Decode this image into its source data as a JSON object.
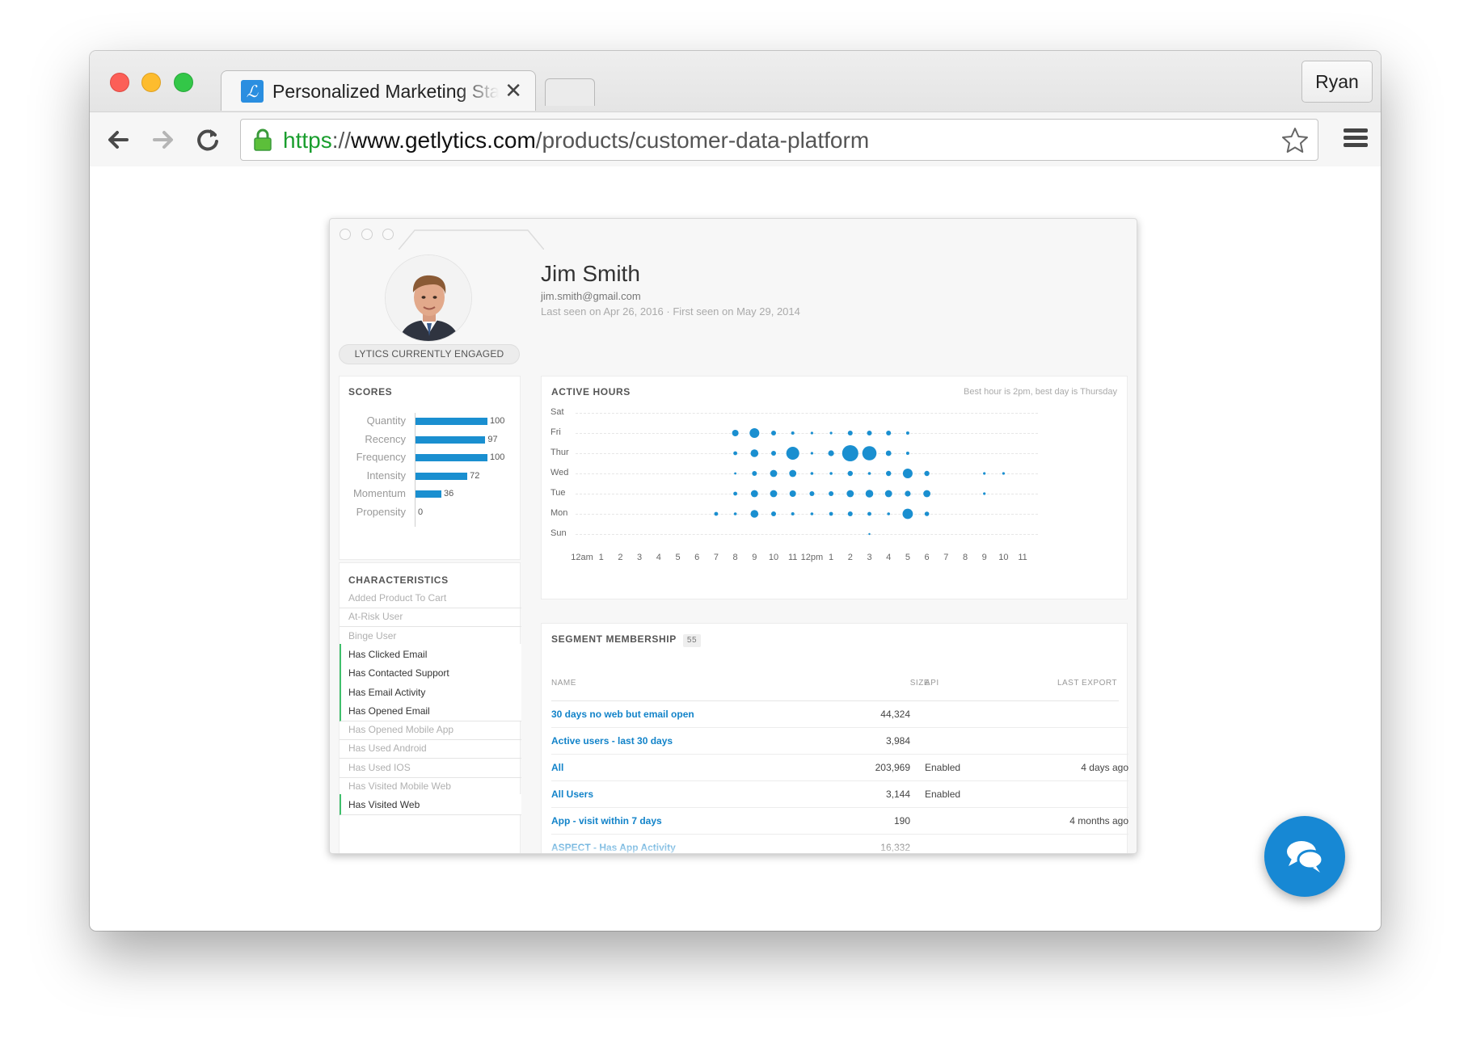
{
  "browser": {
    "tab_title": "Personalized Marketing Sta",
    "tab_favicon_letter": "ℒ",
    "tab_close": "✕",
    "profile_name": "Ryan",
    "url": {
      "protocol": "https",
      "separator": "://",
      "host": "www.getlytics.com",
      "path": "/products/customer-data-platform"
    }
  },
  "profile": {
    "name": "Jim Smith",
    "email": "jim.smith@gmail.com",
    "seen": "Last seen on Apr 26, 2016 · First seen on May 29, 2014",
    "badge": "LYTICS CURRENTLY ENGAGED"
  },
  "scores": {
    "title": "SCORES",
    "items": [
      {
        "label": "Quantity",
        "value": 100
      },
      {
        "label": "Recency",
        "value": 97
      },
      {
        "label": "Frequency",
        "value": 100
      },
      {
        "label": "Intensity",
        "value": 72
      },
      {
        "label": "Momentum",
        "value": 36
      },
      {
        "label": "Propensity",
        "value": 0
      }
    ]
  },
  "characteristics": {
    "title": "CHARACTERISTICS",
    "items": [
      {
        "label": "Added Product To Cart",
        "active": false
      },
      {
        "label": "At-Risk User",
        "active": false
      },
      {
        "label": "Binge User",
        "active": false
      },
      {
        "label": "Has Clicked Email",
        "active": true
      },
      {
        "label": "Has Contacted Support",
        "active": true
      },
      {
        "label": "Has Email Activity",
        "active": true
      },
      {
        "label": "Has Opened Email",
        "active": true
      },
      {
        "label": "Has Opened Mobile App",
        "active": false
      },
      {
        "label": "Has Used Android",
        "active": false
      },
      {
        "label": "Has Used IOS",
        "active": false
      },
      {
        "label": "Has Visited Mobile Web",
        "active": false
      },
      {
        "label": "Has Visited Web",
        "active": true
      }
    ]
  },
  "active_hours": {
    "title": "ACTIVE HOURS",
    "note": "Best hour is 2pm, best day is Thursday",
    "days": [
      "Sat",
      "Fri",
      "Thur",
      "Wed",
      "Tue",
      "Mon",
      "Sun"
    ],
    "hours": [
      "12am",
      "1",
      "2",
      "3",
      "4",
      "5",
      "6",
      "7",
      "8",
      "9",
      "10",
      "11",
      "12pm",
      "1",
      "2",
      "3",
      "4",
      "5",
      "6",
      "7",
      "8",
      "9",
      "10",
      "11"
    ],
    "accent": "#1a8fd0",
    "chart_data": {
      "type": "scatter",
      "title": "ACTIVE HOURS",
      "x_categories": [
        "12am",
        "1",
        "2",
        "3",
        "4",
        "5",
        "6",
        "7",
        "8",
        "9",
        "10",
        "11",
        "12pm",
        "1",
        "2",
        "3",
        "4",
        "5",
        "6",
        "7",
        "8",
        "9",
        "10",
        "11"
      ],
      "y_categories": [
        "Sat",
        "Fri",
        "Thur",
        "Wed",
        "Tue",
        "Mon",
        "Sun"
      ],
      "points": [
        {
          "day": "Fri",
          "hour": 8,
          "size": 2
        },
        {
          "day": "Fri",
          "hour": 9,
          "size": 3
        },
        {
          "day": "Fri",
          "hour": 10,
          "size": 1.5
        },
        {
          "day": "Fri",
          "hour": 11,
          "size": 1
        },
        {
          "day": "Fri",
          "hour": 12,
          "size": 0.8
        },
        {
          "day": "Fri",
          "hour": 13,
          "size": 0.8
        },
        {
          "day": "Fri",
          "hour": 14,
          "size": 1.5
        },
        {
          "day": "Fri",
          "hour": 15,
          "size": 1.5
        },
        {
          "day": "Fri",
          "hour": 16,
          "size": 1.5
        },
        {
          "day": "Fri",
          "hour": 17,
          "size": 1
        },
        {
          "day": "Thur",
          "hour": 8,
          "size": 1.2
        },
        {
          "day": "Thur",
          "hour": 9,
          "size": 2.4
        },
        {
          "day": "Thur",
          "hour": 10,
          "size": 1.5
        },
        {
          "day": "Thur",
          "hour": 11,
          "size": 4
        },
        {
          "day": "Thur",
          "hour": 12,
          "size": 0.8
        },
        {
          "day": "Thur",
          "hour": 13,
          "size": 1.8
        },
        {
          "day": "Thur",
          "hour": 14,
          "size": 5
        },
        {
          "day": "Thur",
          "hour": 15,
          "size": 4.4
        },
        {
          "day": "Thur",
          "hour": 16,
          "size": 1.7
        },
        {
          "day": "Thur",
          "hour": 17,
          "size": 1
        },
        {
          "day": "Wed",
          "hour": 8,
          "size": 0.7
        },
        {
          "day": "Wed",
          "hour": 9,
          "size": 1.5
        },
        {
          "day": "Wed",
          "hour": 10,
          "size": 2.2
        },
        {
          "day": "Wed",
          "hour": 11,
          "size": 2.2
        },
        {
          "day": "Wed",
          "hour": 12,
          "size": 0.9
        },
        {
          "day": "Wed",
          "hour": 13,
          "size": 0.9
        },
        {
          "day": "Wed",
          "hour": 14,
          "size": 1.6
        },
        {
          "day": "Wed",
          "hour": 15,
          "size": 0.9
        },
        {
          "day": "Wed",
          "hour": 16,
          "size": 1.6
        },
        {
          "day": "Wed",
          "hour": 17,
          "size": 3
        },
        {
          "day": "Wed",
          "hour": 18,
          "size": 1.6
        },
        {
          "day": "Wed",
          "hour": 21,
          "size": 0.8
        },
        {
          "day": "Wed",
          "hour": 22,
          "size": 0.8
        },
        {
          "day": "Tue",
          "hour": 8,
          "size": 1.2
        },
        {
          "day": "Tue",
          "hour": 9,
          "size": 2.2
        },
        {
          "day": "Tue",
          "hour": 10,
          "size": 2.2
        },
        {
          "day": "Tue",
          "hour": 11,
          "size": 2
        },
        {
          "day": "Tue",
          "hour": 12,
          "size": 1.5
        },
        {
          "day": "Tue",
          "hour": 13,
          "size": 1.5
        },
        {
          "day": "Tue",
          "hour": 14,
          "size": 2.2
        },
        {
          "day": "Tue",
          "hour": 15,
          "size": 2.4
        },
        {
          "day": "Tue",
          "hour": 16,
          "size": 2.2
        },
        {
          "day": "Tue",
          "hour": 17,
          "size": 1.8
        },
        {
          "day": "Tue",
          "hour": 18,
          "size": 2.2
        },
        {
          "day": "Tue",
          "hour": 21,
          "size": 0.8
        },
        {
          "day": "Mon",
          "hour": 7,
          "size": 1.2
        },
        {
          "day": "Mon",
          "hour": 8,
          "size": 0.9
        },
        {
          "day": "Mon",
          "hour": 9,
          "size": 2.4
        },
        {
          "day": "Mon",
          "hour": 10,
          "size": 1.5
        },
        {
          "day": "Mon",
          "hour": 11,
          "size": 1
        },
        {
          "day": "Mon",
          "hour": 12,
          "size": 0.9
        },
        {
          "day": "Mon",
          "hour": 13,
          "size": 1.2
        },
        {
          "day": "Mon",
          "hour": 14,
          "size": 1.5
        },
        {
          "day": "Mon",
          "hour": 15,
          "size": 1.2
        },
        {
          "day": "Mon",
          "hour": 16,
          "size": 0.9
        },
        {
          "day": "Mon",
          "hour": 17,
          "size": 3.2
        },
        {
          "day": "Mon",
          "hour": 18,
          "size": 1.4
        },
        {
          "day": "Sun",
          "hour": 15,
          "size": 0.6
        }
      ]
    }
  },
  "segments": {
    "title": "SEGMENT MEMBERSHIP",
    "count": "55",
    "headers": {
      "name": "NAME",
      "size": "SIZE",
      "api": "API",
      "last_export": "LAST EXPORT"
    },
    "rows": [
      {
        "name": "30 days no web but email open",
        "size": "44,324",
        "api": "",
        "last_export": ""
      },
      {
        "name": "Active users - last 30 days",
        "size": "3,984",
        "api": "",
        "last_export": ""
      },
      {
        "name": "All",
        "size": "203,969",
        "api": "Enabled",
        "last_export": "4 days ago"
      },
      {
        "name": "All Users",
        "size": "3,144",
        "api": "Enabled",
        "last_export": ""
      },
      {
        "name": "App - visit within 7 days",
        "size": "190",
        "api": "",
        "last_export": "4 months ago"
      },
      {
        "name": "ASPECT - Has App Activity",
        "size": "16,332",
        "api": "",
        "last_export": ""
      }
    ]
  }
}
